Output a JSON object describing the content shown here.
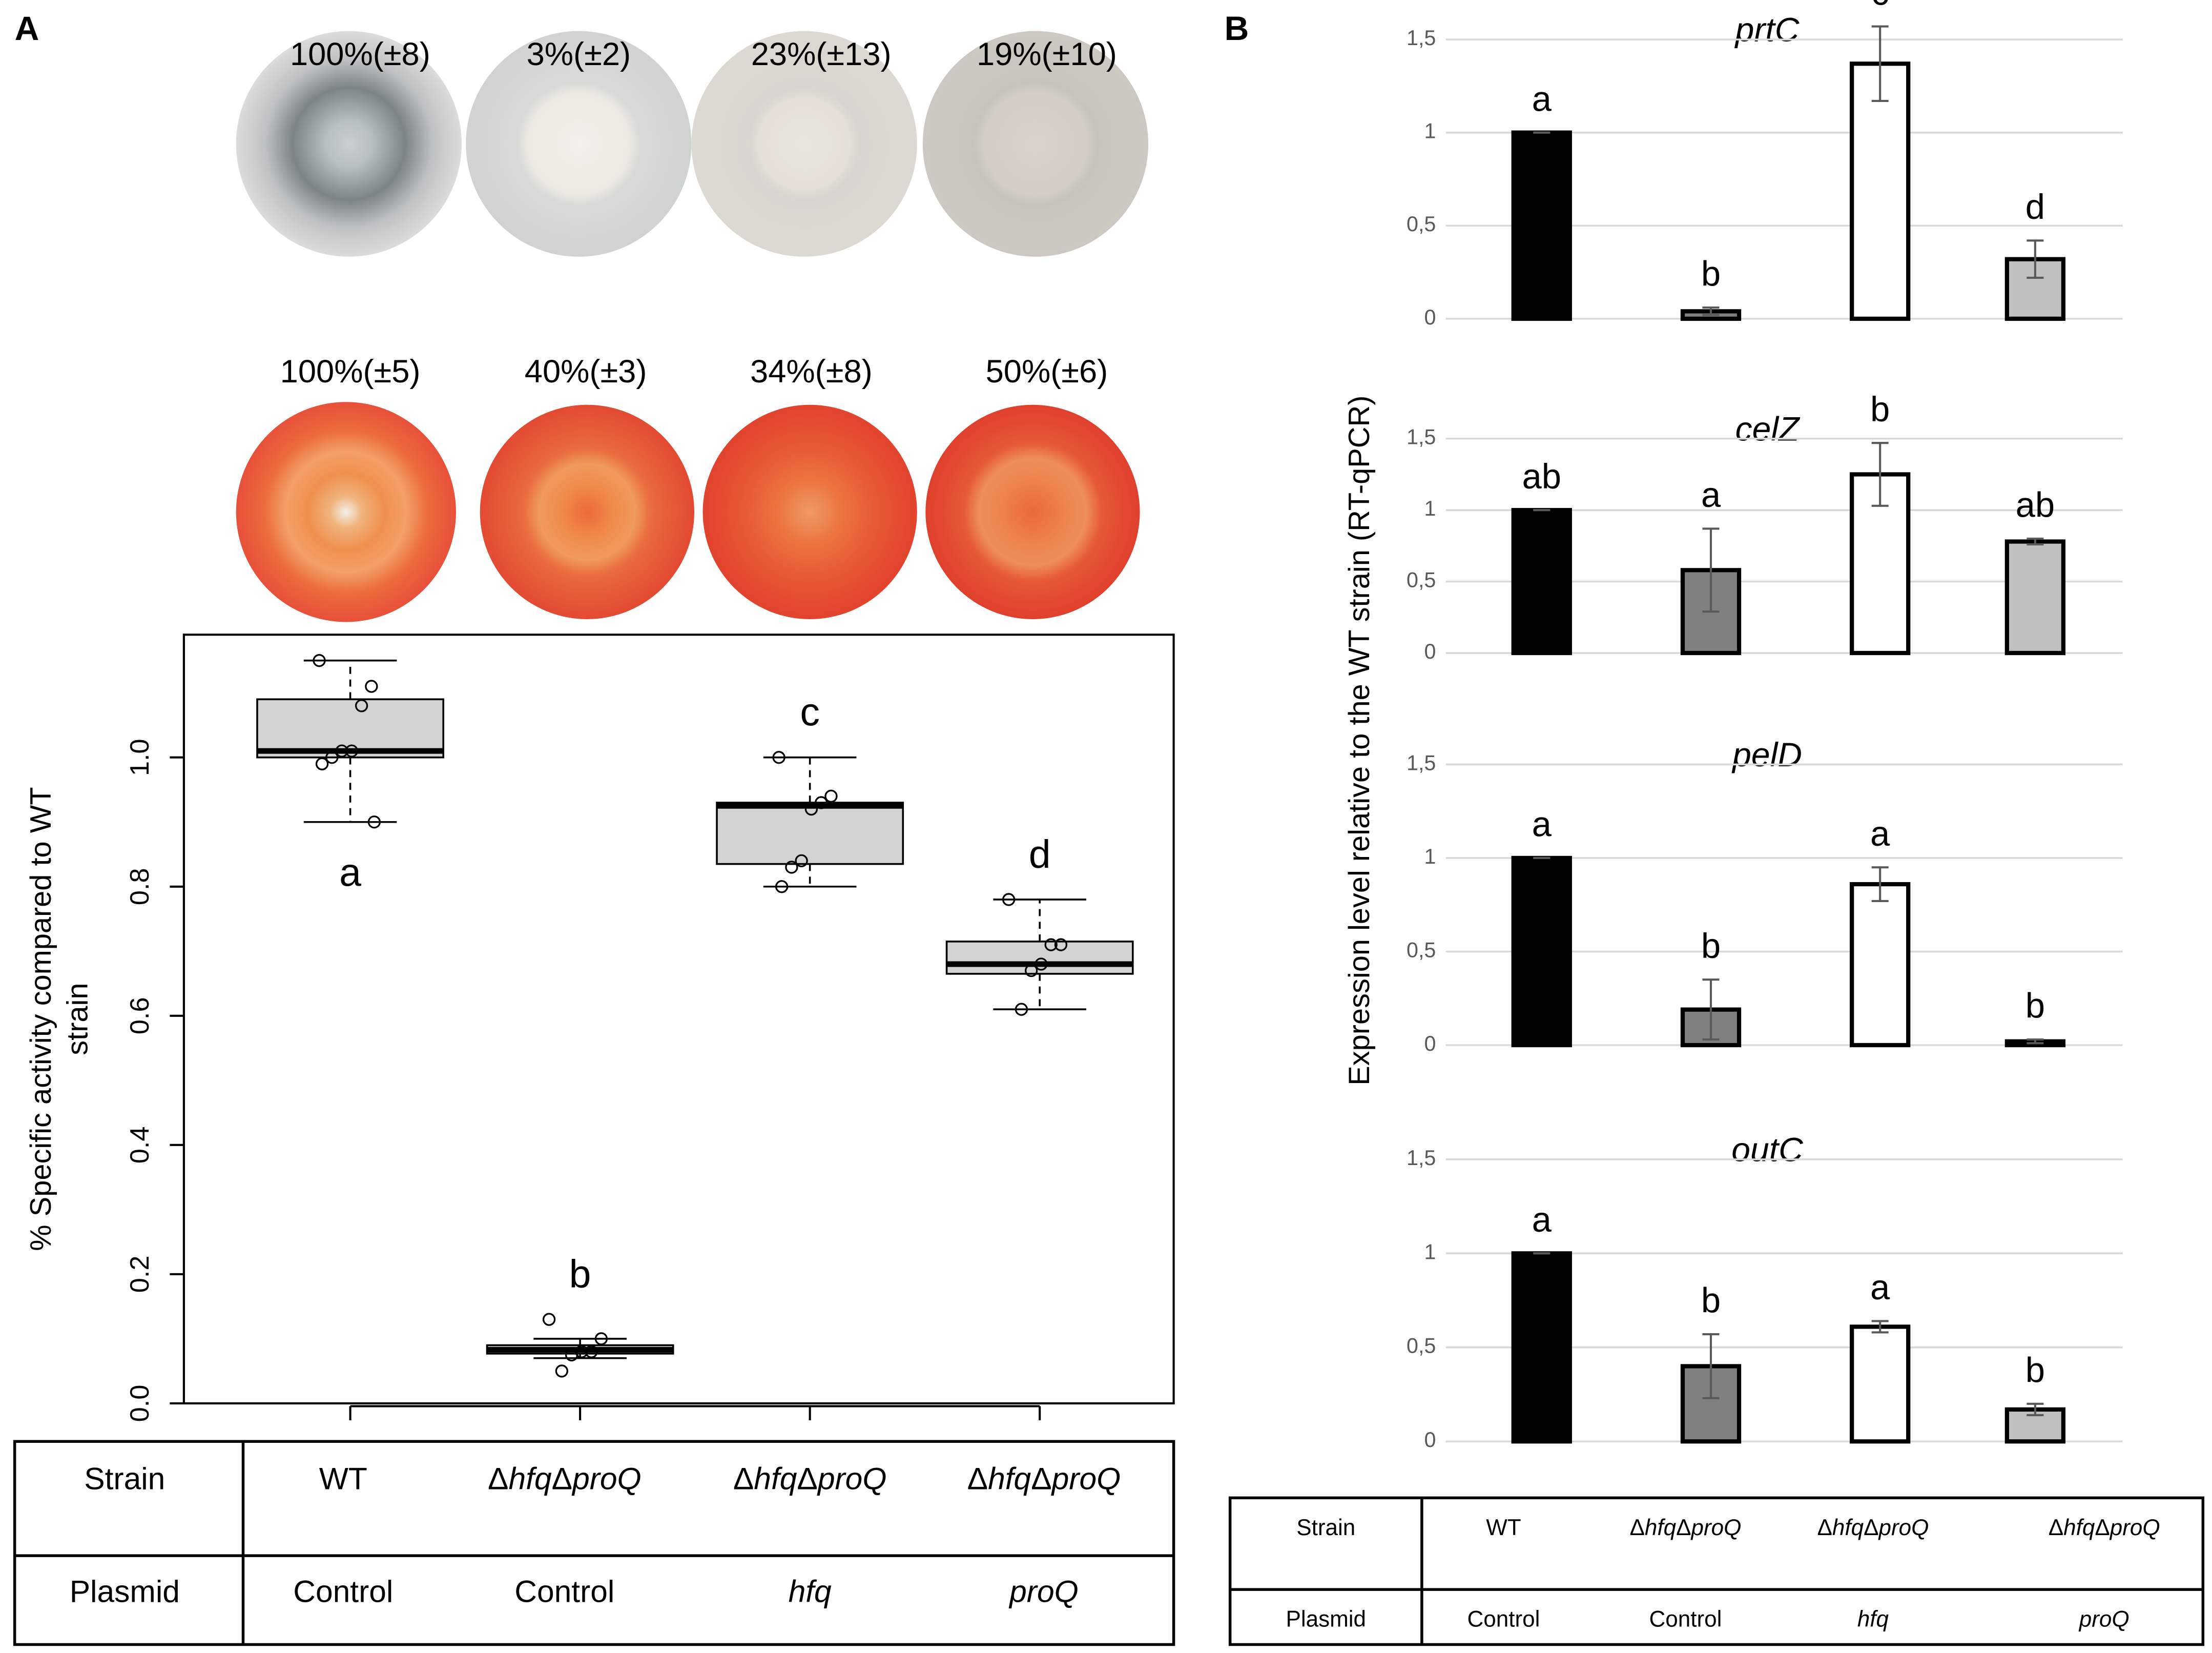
{
  "panels": [
    "A",
    "B"
  ],
  "plates": [
    [
      "100%(±8)",
      "3%(±2)",
      "23%(±13)",
      "19%(±10)"
    ],
    [
      "100%(±5)",
      "40%(±3)",
      "34%(±8)",
      "50%(±6)"
    ]
  ],
  "chart_data": [
    {
      "type": "box",
      "ylabel": [
        "% Specific activity compared to WT",
        "strain"
      ],
      "categories": [
        null,
        null,
        null,
        null
      ],
      "ylim": [
        0,
        1.19
      ],
      "yticks": [
        {
          "value": 0,
          "label": "0.0"
        },
        0.2,
        0.4,
        0.6,
        0.8,
        {
          "value": 1,
          "label": "1.0"
        }
      ],
      "color": "#d3d3d3",
      "boxes": [
        {
          "low": 0.9,
          "q1": 1.0,
          "median": 1.01,
          "q3": 1.09,
          "high": 1.15,
          "points": [
            1.15,
            1.11,
            1.08,
            1.01,
            1.01,
            1.0,
            0.99,
            0.9
          ],
          "letter": "a"
        },
        {
          "low": 0.07,
          "q1": 0.077,
          "median": 0.083,
          "q3": 0.09,
          "high": 0.1,
          "points": [
            0.13,
            0.1,
            0.08,
            0.08,
            0.075,
            0.05
          ],
          "letter": "b"
        },
        {
          "low": 0.8,
          "q1": 0.835,
          "median": 0.925,
          "q3": 0.93,
          "high": 1.0,
          "points": [
            1.0,
            0.94,
            0.93,
            0.92,
            0.84,
            0.83,
            0.8
          ],
          "letter": "c"
        },
        {
          "low": 0.61,
          "q1": 0.665,
          "median": 0.68,
          "q3": 0.715,
          "high": 0.78,
          "points": [
            0.78,
            0.71,
            0.71,
            0.68,
            0.67,
            0.61
          ],
          "letter": "d"
        }
      ]
    },
    {
      "type": "bar",
      "title": "prtC",
      "categories": [
        null,
        null,
        null,
        null
      ],
      "values": [
        1,
        0.04,
        1.37,
        0.32
      ],
      "errors": [
        0,
        0.02,
        0.2,
        0.1
      ],
      "letters": [
        "a",
        "b",
        "c",
        "d"
      ],
      "colors": [
        "#000000",
        "#808080",
        "#ffffff",
        "#bfbfbf"
      ],
      "ylim": [
        0,
        1.5
      ],
      "yticks": [
        0,
        {
          "value": 0.5,
          "label": "0,5"
        },
        1,
        {
          "value": 1.5,
          "label": "1,5"
        }
      ],
      "grid": true
    },
    {
      "type": "bar",
      "title": "celZ",
      "categories": [
        null,
        null,
        null,
        null
      ],
      "values": [
        1,
        0.58,
        1.25,
        0.78
      ],
      "errors": [
        0,
        0.29,
        0.22,
        0.02
      ],
      "letters": [
        "ab",
        "a",
        "b",
        "ab"
      ],
      "colors": [
        "#000000",
        "#808080",
        "#ffffff",
        "#bfbfbf"
      ],
      "ylim": [
        0,
        1.5
      ],
      "yticks": [
        0,
        {
          "value": 0.5,
          "label": "0,5"
        },
        1,
        {
          "value": 1.5,
          "label": "1,5"
        }
      ],
      "grid": true
    },
    {
      "type": "bar",
      "title": "pelD",
      "categories": [
        null,
        null,
        null,
        null
      ],
      "values": [
        1,
        0.19,
        0.86,
        0.02
      ],
      "errors": [
        0,
        0.16,
        0.09,
        0.01
      ],
      "letters": [
        "a",
        "b",
        "a",
        "b"
      ],
      "colors": [
        "#000000",
        "#808080",
        "#ffffff",
        "#bfbfbf"
      ],
      "ylim": [
        0,
        1.5
      ],
      "yticks": [
        0,
        {
          "value": 0.5,
          "label": "0,5"
        },
        1,
        {
          "value": 1.5,
          "label": "1,5"
        }
      ],
      "grid": true
    },
    {
      "type": "bar",
      "title": "outC",
      "categories": [
        null,
        null,
        null,
        null
      ],
      "values": [
        1,
        0.4,
        0.61,
        0.17
      ],
      "errors": [
        0,
        0.17,
        0.03,
        0.03
      ],
      "letters": [
        "a",
        "b",
        "a",
        "b"
      ],
      "colors": [
        "#000000",
        "#808080",
        "#ffffff",
        "#bfbfbf"
      ],
      "ylim": [
        0,
        1.5
      ],
      "yticks": [
        0,
        {
          "value": 0.5,
          "label": "0,5"
        },
        1,
        {
          "value": 1.5,
          "label": "1,5"
        }
      ],
      "grid": true
    }
  ],
  "expression_ylabel": "Expression level relative to the WT strain (RT-qPCR)",
  "tables": [
    {
      "rows": [
        [
          "Strain",
          "WT",
          "ΔhfqΔproQ",
          "ΔhfqΔproQ",
          "ΔhfqΔproQ"
        ],
        [
          "Plasmid",
          "Control",
          "Control",
          "hfq",
          "proQ"
        ]
      ]
    },
    {
      "rows": [
        [
          "Strain",
          "WT",
          "ΔhfqΔproQ",
          "ΔhfqΔproQ",
          "ΔhfqΔproQ"
        ],
        [
          "Plasmid",
          "Control",
          "Control",
          "hfq",
          "proQ"
        ]
      ]
    }
  ]
}
